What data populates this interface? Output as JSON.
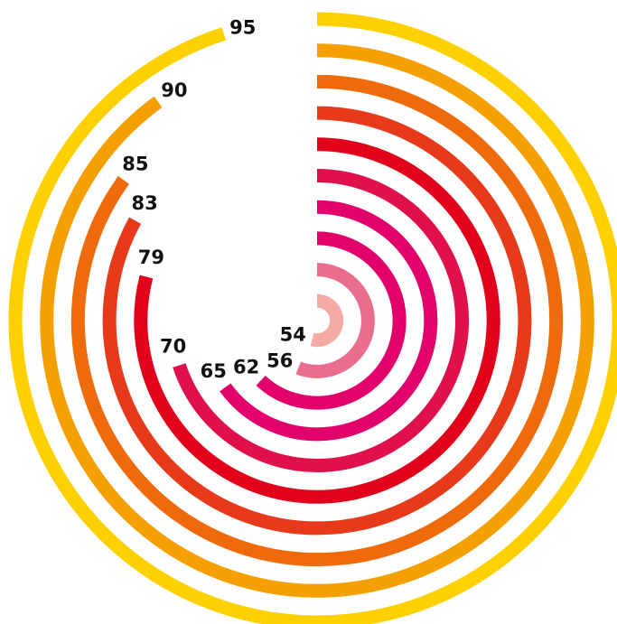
{
  "chart_data": {
    "type": "radial-bar",
    "max": 100,
    "start_angle": "top",
    "direction": "clockwise",
    "values": [
      95,
      90,
      85,
      83,
      79,
      70,
      65,
      62,
      56,
      54
    ],
    "labels": [
      "95",
      "90",
      "85",
      "83",
      "79",
      "70",
      "65",
      "62",
      "56",
      "54"
    ],
    "colors": [
      "#FFD000",
      "#F5A000",
      "#EE6A0A",
      "#E63A1A",
      "#E2001A",
      "#E0104A",
      "#E2006A",
      "#E2006A",
      "#E96E8E",
      "#F4AAA5"
    ]
  }
}
